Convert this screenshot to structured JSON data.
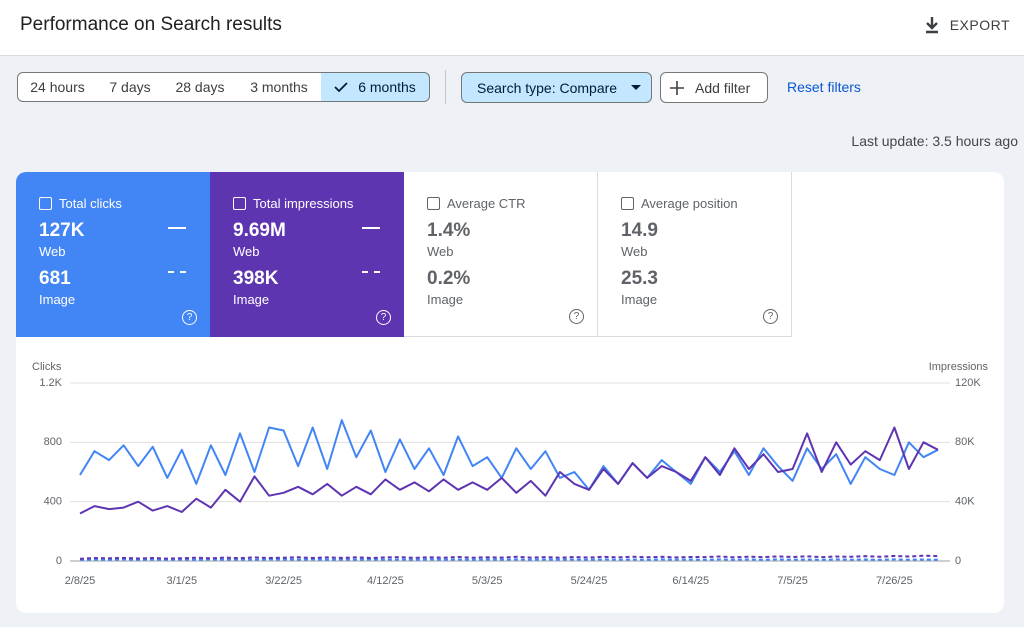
{
  "header": {
    "title": "Performance on Search results",
    "export": "EXPORT"
  },
  "filters": {
    "ranges": [
      "24 hours",
      "7 days",
      "28 days",
      "3 months",
      "6 months"
    ],
    "search_type": "Search type: Compare",
    "add_filter": "Add filter",
    "reset": "Reset filters"
  },
  "last_update": "Last update: 3.5 hours ago",
  "metrics": [
    {
      "label": "Total clicks",
      "rows": [
        {
          "value": "127K",
          "label": "Web"
        },
        {
          "value": "681",
          "label": "Image"
        }
      ]
    },
    {
      "label": "Total impressions",
      "rows": [
        {
          "value": "9.69M",
          "label": "Web"
        },
        {
          "value": "398K",
          "label": "Image"
        }
      ]
    },
    {
      "label": "Average CTR",
      "rows": [
        {
          "value": "1.4%",
          "label": "Web"
        },
        {
          "value": "0.2%",
          "label": "Image"
        }
      ]
    },
    {
      "label": "Average position",
      "rows": [
        {
          "value": "14.9",
          "label": "Web"
        },
        {
          "value": "25.3",
          "label": "Image"
        }
      ]
    }
  ],
  "chart_data": {
    "type": "line",
    "ylabel": "Clicks",
    "y2label": "Impressions",
    "categories": [
      "2/8/25",
      null,
      null,
      null,
      null,
      null,
      null,
      "3/1/25",
      null,
      null,
      null,
      null,
      null,
      null,
      "3/22/25",
      null,
      null,
      null,
      null,
      null,
      null,
      "4/12/25",
      null,
      null,
      null,
      null,
      null,
      null,
      "5/3/25",
      null,
      null,
      null,
      null,
      null,
      null,
      "5/24/25",
      null,
      null,
      null,
      null,
      null,
      null,
      "6/14/25",
      null,
      null,
      null,
      null,
      null,
      null,
      "7/5/25",
      null,
      null,
      null,
      null,
      null,
      null,
      "7/26/25",
      null,
      null,
      null
    ],
    "ylim": [
      0,
      1200
    ],
    "yticks": [
      0,
      400,
      800,
      {
        "value": 1200,
        "label": "1.2K"
      }
    ],
    "y2lim": [
      0,
      120000
    ],
    "y2ticks": [
      0,
      {
        "value": 40000,
        "label": "40K"
      },
      {
        "value": 80000,
        "label": "80K"
      },
      {
        "value": 120000,
        "label": "120K"
      }
    ],
    "grid": true,
    "series": [
      {
        "color": "#4285f4",
        "dashed": false,
        "values": [
          580,
          740,
          680,
          780,
          640,
          770,
          560,
          750,
          520,
          780,
          580,
          860,
          600,
          900,
          880,
          640,
          900,
          620,
          950,
          700,
          880,
          600,
          820,
          620,
          760,
          580,
          840,
          640,
          700,
          560,
          760,
          620,
          740,
          560,
          600,
          480,
          640,
          520,
          660,
          560,
          680,
          600,
          520,
          700,
          600,
          740,
          580,
          760,
          640,
          540,
          760,
          620,
          720,
          520,
          700,
          620,
          580,
          800,
          700,
          750
        ]
      },
      {
        "color": "#5e35b1",
        "dashed": false,
        "axis": "y2",
        "values": [
          32000,
          37000,
          35000,
          36000,
          40000,
          34000,
          37000,
          33000,
          42000,
          36000,
          48000,
          40000,
          57000,
          44000,
          46000,
          50000,
          45000,
          52000,
          44000,
          50000,
          45000,
          55000,
          48000,
          53000,
          47000,
          55000,
          48000,
          53000,
          48000,
          56000,
          46000,
          54000,
          44000,
          60000,
          52000,
          48000,
          62000,
          52000,
          66000,
          56000,
          64000,
          60000,
          54000,
          70000,
          58000,
          76000,
          62000,
          72000,
          60000,
          62000,
          86000,
          60000,
          80000,
          65000,
          74000,
          68000,
          90000,
          62000,
          80000,
          75000
        ]
      },
      {
        "color": "#4285f4",
        "dashed": true,
        "values": [
          8,
          10,
          9,
          11,
          8,
          10,
          9,
          10,
          8,
          11,
          9,
          10,
          8,
          11,
          10,
          9,
          11,
          8,
          10,
          9,
          11,
          9,
          10,
          8,
          11,
          9,
          10,
          8,
          10,
          9,
          11,
          8,
          10,
          9,
          10,
          8,
          11,
          9,
          10,
          8,
          11,
          9,
          10,
          8,
          11,
          9,
          10,
          8,
          11,
          9,
          10,
          8,
          11,
          9,
          10,
          8,
          11,
          9,
          10,
          9
        ]
      },
      {
        "color": "#5e35b1",
        "dashed": true,
        "axis": "y2",
        "values": [
          1500,
          2000,
          1800,
          2100,
          1700,
          2000,
          1600,
          1900,
          2200,
          1800,
          2300,
          1900,
          2400,
          2000,
          2200,
          2500,
          2000,
          2400,
          2100,
          2500,
          2000,
          2400,
          2600,
          2100,
          2500,
          2200,
          2700,
          2200,
          2500,
          2300,
          2800,
          2300,
          2600,
          2200,
          2700,
          2300,
          2800,
          2400,
          2900,
          2500,
          2800,
          2400,
          2700,
          2600,
          3000,
          2500,
          2900,
          2600,
          3100,
          2700,
          3200,
          2600,
          3000,
          2800,
          3300,
          2800,
          3400,
          3000,
          3600,
          3300
        ]
      }
    ]
  }
}
